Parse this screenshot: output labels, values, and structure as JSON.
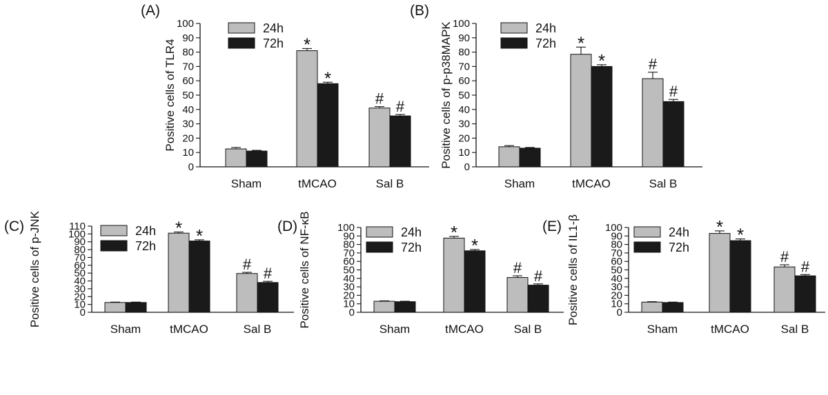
{
  "colors": {
    "series_24h": "#bdbdbd",
    "series_72h": "#1a1a1a",
    "axis": "#111111"
  },
  "chart_data": [
    {
      "panel_label": "(A)",
      "type": "bar",
      "ylabel": "Positive cells of TLR4",
      "categories": [
        "Sham",
        "tMCAO",
        "Sal B"
      ],
      "ylim": [
        0,
        100
      ],
      "yticks": [
        0,
        10,
        20,
        30,
        40,
        50,
        60,
        70,
        80,
        90,
        100
      ],
      "series": [
        {
          "name": "24h",
          "values": [
            12.5,
            81,
            41
          ],
          "errors": [
            1.0,
            1.5,
            1.0
          ],
          "marks": [
            "",
            "*",
            "#"
          ]
        },
        {
          "name": "72h",
          "values": [
            11,
            58,
            35.5
          ],
          "errors": [
            0.5,
            1.0,
            1.0
          ],
          "marks": [
            "",
            "*",
            "#"
          ]
        }
      ]
    },
    {
      "panel_label": "(B)",
      "type": "bar",
      "ylabel": "Positive cells of p-p38MAPK",
      "categories": [
        "Sham",
        "tMCAO",
        "Sal B"
      ],
      "ylim": [
        0,
        100
      ],
      "yticks": [
        0,
        10,
        20,
        30,
        40,
        50,
        60,
        70,
        80,
        90,
        100
      ],
      "series": [
        {
          "name": "24h",
          "values": [
            14,
            78.5,
            61.5
          ],
          "errors": [
            0.8,
            5.0,
            4.5
          ],
          "marks": [
            "",
            "*",
            "#"
          ]
        },
        {
          "name": "72h",
          "values": [
            13,
            70,
            45.5
          ],
          "errors": [
            0.5,
            1.2,
            1.5
          ],
          "marks": [
            "",
            "*",
            "#"
          ]
        }
      ]
    },
    {
      "panel_label": "(C)",
      "type": "bar",
      "ylabel": "Positive cells of p-JNK",
      "categories": [
        "Sham",
        "tMCAO",
        "Sal B"
      ],
      "ylim": [
        0,
        110
      ],
      "yticks": [
        0,
        10,
        20,
        30,
        40,
        50,
        60,
        70,
        80,
        90,
        100,
        110
      ],
      "series": [
        {
          "name": "24h",
          "values": [
            12.5,
            101,
            49.5
          ],
          "errors": [
            0.5,
            1.5,
            1.5
          ],
          "marks": [
            "",
            "*",
            "#"
          ]
        },
        {
          "name": "72h",
          "values": [
            12.5,
            91,
            38
          ],
          "errors": [
            0.5,
            1.5,
            1.5
          ],
          "marks": [
            "",
            "*",
            "#"
          ]
        }
      ]
    },
    {
      "panel_label": "(D)",
      "type": "bar",
      "ylabel": "Positive cells of NF-κB",
      "categories": [
        "Sham",
        "tMCAO",
        "Sal B"
      ],
      "ylim": [
        0,
        100
      ],
      "yticks": [
        0,
        10,
        20,
        30,
        40,
        50,
        60,
        70,
        80,
        90,
        100
      ],
      "series": [
        {
          "name": "24h",
          "values": [
            13,
            87.5,
            41
          ],
          "errors": [
            0.5,
            2.0,
            2.0
          ],
          "marks": [
            "",
            "*",
            "#"
          ]
        },
        {
          "name": "72h",
          "values": [
            12.5,
            72.5,
            32
          ],
          "errors": [
            0.5,
            1.5,
            1.5
          ],
          "marks": [
            "",
            "*",
            "#"
          ]
        }
      ]
    },
    {
      "panel_label": "(E)",
      "type": "bar",
      "ylabel": "Positive cells of IL1-β",
      "categories": [
        "Sham",
        "tMCAO",
        "Sal B"
      ],
      "ylim": [
        0,
        100
      ],
      "yticks": [
        0,
        10,
        20,
        30,
        40,
        50,
        60,
        70,
        80,
        90,
        100
      ],
      "series": [
        {
          "name": "24h",
          "values": [
            12,
            93,
            53.5
          ],
          "errors": [
            0.5,
            3.0,
            2.5
          ],
          "marks": [
            "",
            "*",
            "#"
          ]
        },
        {
          "name": "72h",
          "values": [
            11.5,
            84.5,
            43
          ],
          "errors": [
            0.5,
            2.0,
            1.5
          ],
          "marks": [
            "",
            "*",
            "#"
          ]
        }
      ]
    }
  ]
}
